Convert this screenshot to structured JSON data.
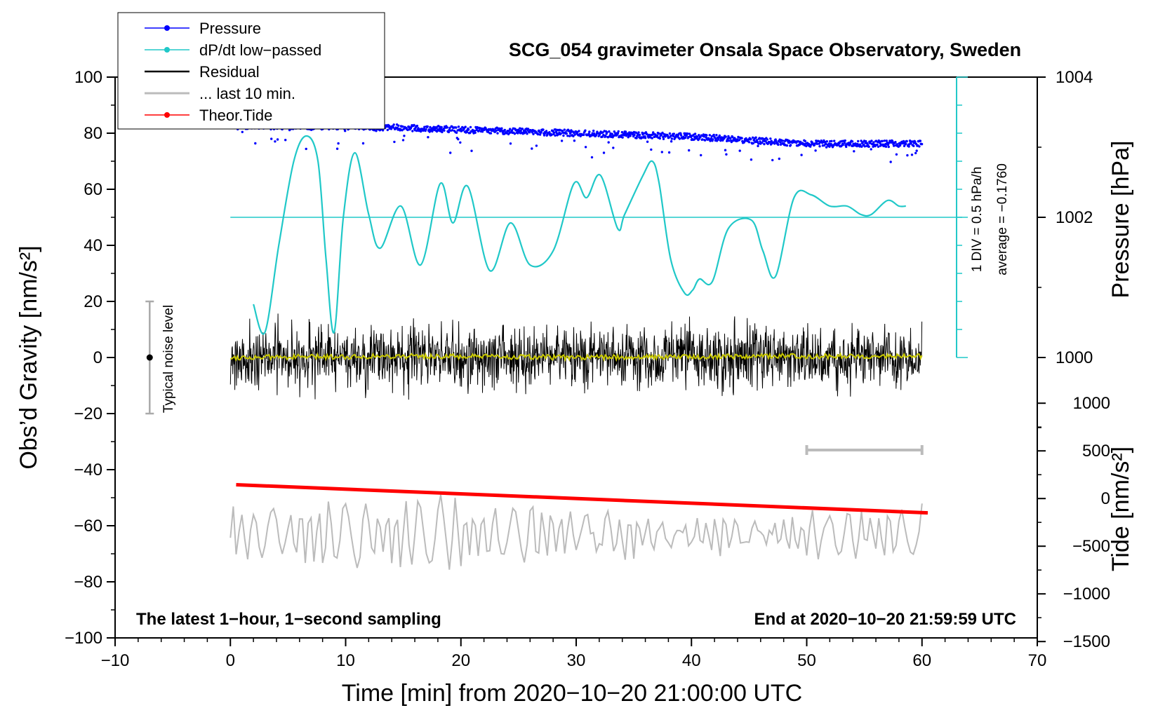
{
  "chart_data": {
    "type": "line",
    "title": "SCG_054 gravimeter Onsala Space Observatory, Sweden",
    "xlabel": "Time [min] from 2020−10−20 21:00:00 UTC",
    "ylabel_left": "Obs’d Gravity [nm/s²]",
    "ylabel_right_pressure": "Pressure [hPa]",
    "ylabel_right_tide": "Tide [nm/s²]",
    "xlim": [
      -10,
      70
    ],
    "ylim": [
      -100,
      100
    ],
    "x_ticks": [
      -10,
      0,
      10,
      20,
      30,
      40,
      50,
      60,
      70
    ],
    "x_tick_labels": [
      "−10",
      "0",
      "10",
      "20",
      "30",
      "40",
      "50",
      "60",
      "70"
    ],
    "y_ticks": [
      -100,
      -80,
      -60,
      -40,
      -20,
      0,
      20,
      40,
      60,
      80,
      100
    ],
    "y_tick_labels": [
      "−100",
      "−80",
      "−60",
      "−40",
      "−20",
      "0",
      "20",
      "40",
      "60",
      "80",
      "100"
    ],
    "pressure_axis": {
      "ticks": [
        1000,
        1002,
        1004
      ],
      "tick_labels": [
        "1000",
        "1002",
        "1004"
      ],
      "ref_hpa": 1002,
      "ref_y": 50,
      "y_per_hpa": 25
    },
    "tide_axis": {
      "ticks": [
        -1500,
        -1000,
        -500,
        0,
        500,
        1000
      ],
      "tick_labels": [
        "−1500",
        "−1000",
        "−500",
        "0",
        "500",
        "1000"
      ],
      "y_per_unit": 0.034,
      "zero_y": -50.3
    },
    "dpdt_axis": {
      "label": "1 DIV = 0.5 hPa/h",
      "average_label": "average = −0.1760",
      "ref_y": 50,
      "div_y": 10,
      "x_position": 63,
      "y_range": [
        0,
        100
      ]
    },
    "legend": [
      {
        "name": "Pressure",
        "color": "#0000ff",
        "marker": true
      },
      {
        "name": "dP/dt low−passed",
        "color": "#20c8c8",
        "marker": true
      },
      {
        "name": "Residual",
        "color": "#000000",
        "marker": false
      },
      {
        "name": "... last 10 min.",
        "color": "#bbbbbb",
        "marker": false
      },
      {
        "name": "Theor.Tide",
        "color": "#ff0000",
        "marker": true
      }
    ],
    "noise_bar": {
      "label": "Typical noise level",
      "x": -7,
      "y_low": -20,
      "y_high": 20
    },
    "last10_bar": {
      "x_start": 50,
      "x_end": 60,
      "y": -33
    },
    "annotations": {
      "left": "The latest 1−hour, 1−second sampling",
      "right": "End at 2020−10−20 21:59:59 UTC"
    },
    "series": [
      {
        "name": "Pressure",
        "unit": "hPa",
        "x": [
          0.5,
          10,
          20,
          30,
          40,
          50,
          60
        ],
        "values": [
          1003.3,
          1003.3,
          1003.25,
          1003.2,
          1003.15,
          1003.05,
          1003.05
        ]
      },
      {
        "name": "dP/dt low−passed",
        "unit": "y",
        "x": [
          2,
          3,
          4.2,
          5.5,
          6.6,
          7.6,
          8.3,
          9.0,
          9.8,
          10.8,
          12,
          13,
          14.8,
          16.5,
          18.2,
          19.3,
          20.6,
          22.5,
          24.3,
          26,
          28,
          29.8,
          30.9,
          32.1,
          33.6,
          34.2,
          35.8,
          36.6,
          37.2,
          38.2,
          39.4,
          40.1,
          40.7,
          41.8,
          43.2,
          45.2,
          46.2,
          47.3,
          48.9,
          50.4,
          52,
          53.5,
          54.7,
          55.6,
          57,
          58,
          58.6
        ],
        "values": [
          19,
          9,
          40,
          70,
          79,
          70,
          35,
          9,
          50,
          73,
          51,
          39,
          54,
          33,
          62,
          48,
          61,
          31,
          48,
          33,
          38,
          62,
          57,
          65,
          46,
          51,
          65,
          70,
          62,
          35,
          23,
          24,
          28,
          27,
          46,
          49,
          38,
          29,
          57,
          58,
          54,
          54,
          51,
          51,
          56,
          54,
          54
        ]
      },
      {
        "name": "Residual",
        "unit": "nm/s²",
        "x": [
          0,
          15,
          30,
          45,
          60
        ],
        "values": [
          0,
          0,
          0,
          0,
          0
        ],
        "noise_amplitude": 10
      },
      {
        "name": "Residual (smoothed)",
        "unit": "nm/s²",
        "x": [
          0,
          15,
          30,
          45,
          60
        ],
        "values": [
          0,
          0.5,
          0,
          0.5,
          0.5
        ],
        "color": "#c8c800"
      },
      {
        "name": "... last 10 min.",
        "unit": "nm/s²",
        "x": [
          0,
          60
        ],
        "values": [
          -63,
          -63
        ],
        "amplitude": 9
      },
      {
        "name": "Theor.Tide",
        "unit": "nm/s²",
        "x": [
          0.5,
          60.5
        ],
        "values": [
          145,
          -150
        ]
      }
    ]
  }
}
